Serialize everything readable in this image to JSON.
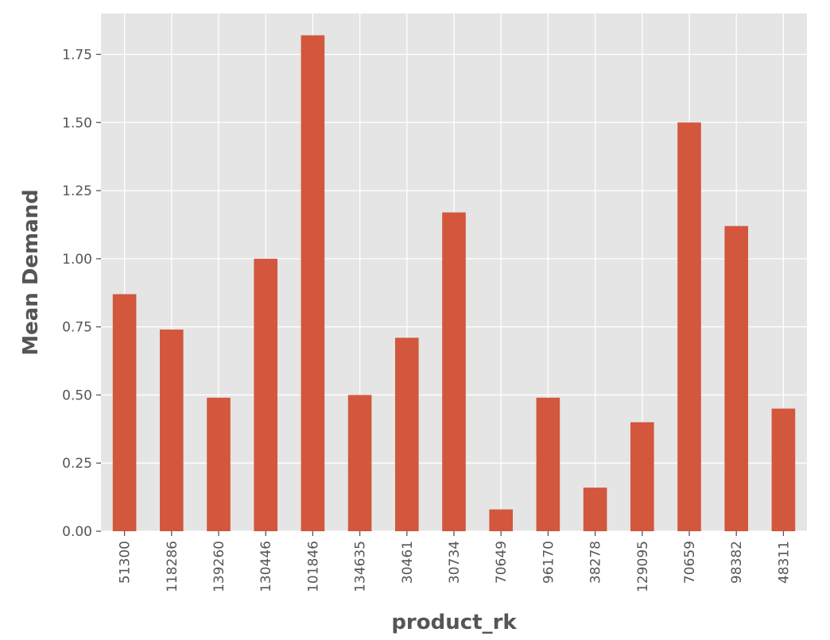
{
  "chart_data": {
    "type": "bar",
    "title": "",
    "xlabel": "product_rk",
    "ylabel": "Mean Demand",
    "categories": [
      "51300",
      "118286",
      "139260",
      "130446",
      "101846",
      "134635",
      "30461",
      "30734",
      "70649",
      "96170",
      "38278",
      "129095",
      "70659",
      "98382",
      "48311"
    ],
    "values": [
      0.87,
      0.74,
      0.49,
      1.0,
      1.82,
      0.5,
      0.71,
      1.17,
      0.08,
      0.49,
      0.16,
      0.4,
      1.5,
      1.12,
      0.45
    ],
    "ylim": [
      0,
      1.9
    ],
    "yticks": [
      0.0,
      0.25,
      0.5,
      0.75,
      1.0,
      1.25,
      1.5,
      1.75
    ],
    "ytick_labels": [
      "0.00",
      "0.25",
      "0.50",
      "0.75",
      "1.00",
      "1.25",
      "1.50",
      "1.75"
    ],
    "grid": true,
    "legend": "none",
    "colors": {
      "bar": "#D2573C",
      "plot_background": "#E5E5E5",
      "grid": "#FFFFFF",
      "text": "#555555"
    }
  }
}
